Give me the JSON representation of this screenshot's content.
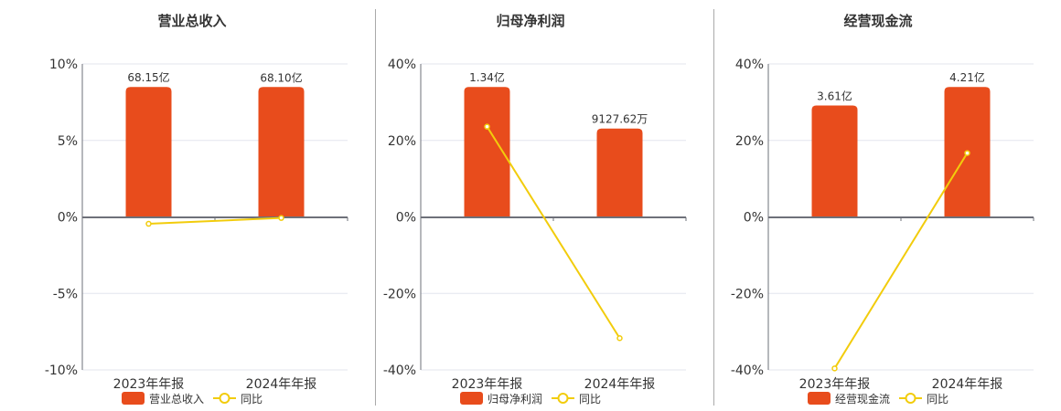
{
  "colors": {
    "bar": "#e84c1c",
    "line": "#f2cc0c",
    "grid": "#e3e6ee",
    "axis": "#6e7079",
    "text": "#333333"
  },
  "chart_data": [
    {
      "type": "bar+line",
      "title": "营业总收入",
      "categories": [
        "2023年年报",
        "2024年年报"
      ],
      "bar_series": {
        "name": "营业总收入",
        "values": [
          68.15,
          68.1
        ],
        "labels": [
          "68.15亿",
          "68.10亿"
        ],
        "unit": "亿"
      },
      "line_series": {
        "name": "同比",
        "values": [
          -0.45,
          -0.07
        ],
        "unit": "%"
      },
      "yaxis": {
        "ticks": [
          "10%",
          "5%",
          "0%",
          "-5%",
          "-10%"
        ],
        "range": [
          -10,
          10
        ]
      },
      "grid": true,
      "legend": "bottom"
    },
    {
      "type": "bar+line",
      "title": "归母净利润",
      "categories": [
        "2023年年报",
        "2024年年报"
      ],
      "bar_series": {
        "name": "归母净利润",
        "values": [
          1.34,
          0.912762
        ],
        "labels": [
          "1.34亿",
          "9127.62万"
        ],
        "unit": "亿"
      },
      "line_series": {
        "name": "同比",
        "values": [
          23.6,
          -31.7
        ],
        "unit": "%"
      },
      "yaxis": {
        "ticks": [
          "40%",
          "20%",
          "0%",
          "-20%",
          "-40%"
        ],
        "range": [
          -40,
          40
        ]
      },
      "grid": true,
      "legend": "bottom"
    },
    {
      "type": "bar+line",
      "title": "经营现金流",
      "categories": [
        "2023年年报",
        "2024年年报"
      ],
      "bar_series": {
        "name": "经营现金流",
        "values": [
          3.61,
          4.21
        ],
        "labels": [
          "3.61亿",
          "4.21亿"
        ],
        "unit": "亿"
      },
      "line_series": {
        "name": "同比",
        "values": [
          -39.6,
          16.7
        ],
        "unit": "%"
      },
      "yaxis": {
        "ticks": [
          "40%",
          "20%",
          "0%",
          "-20%",
          "-40%"
        ],
        "range": [
          -40,
          40
        ]
      },
      "grid": true,
      "legend": "bottom"
    }
  ]
}
